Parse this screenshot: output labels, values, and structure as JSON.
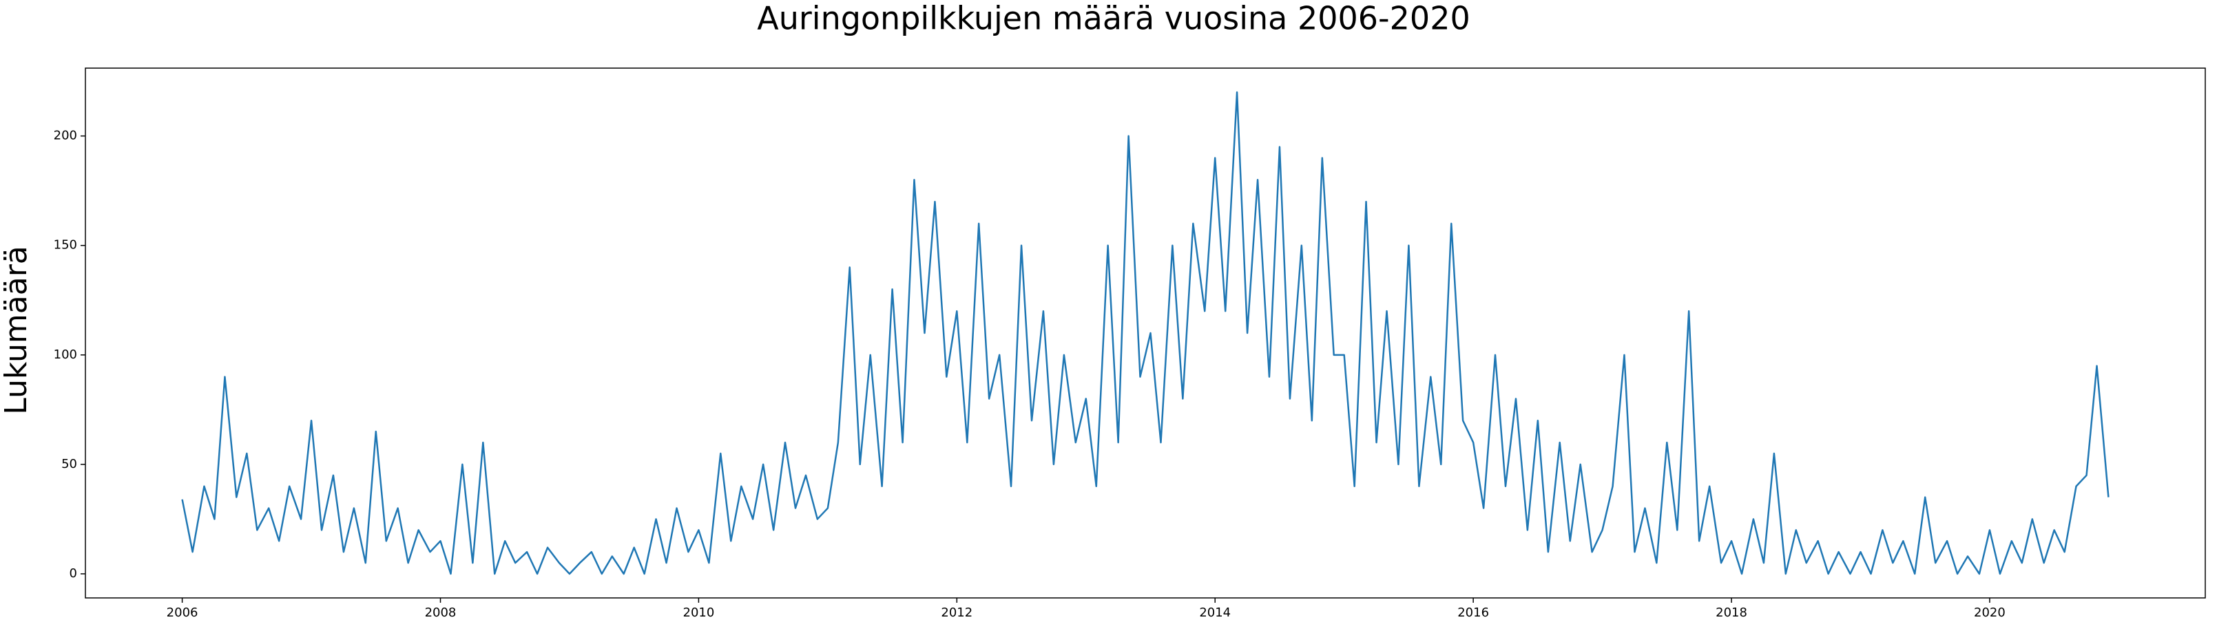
{
  "chart_data": {
    "type": "line",
    "title": "Auringonpilkkujen määrä vuosina 2006-2020",
    "y_label": "Lukumäärä",
    "x": [
      2006,
      2006.08,
      2006.17,
      2006.25,
      2006.33,
      2006.42,
      2006.5,
      2006.58,
      2006.67,
      2006.75,
      2006.83,
      2006.92,
      2007,
      2007.08,
      2007.17,
      2007.25,
      2007.33,
      2007.42,
      2007.5,
      2007.58,
      2007.67,
      2007.75,
      2007.83,
      2007.92,
      2008,
      2008.08,
      2008.17,
      2008.25,
      2008.33,
      2008.42,
      2008.5,
      2008.58,
      2008.67,
      2008.75,
      2008.83,
      2008.92,
      2009,
      2009.08,
      2009.17,
      2009.25,
      2009.33,
      2009.42,
      2009.5,
      2009.58,
      2009.67,
      2009.75,
      2009.83,
      2009.92,
      2010,
      2010.08,
      2010.17,
      2010.25,
      2010.33,
      2010.42,
      2010.5,
      2010.58,
      2010.67,
      2010.75,
      2010.83,
      2010.92,
      2011,
      2011.08,
      2011.17,
      2011.25,
      2011.33,
      2011.42,
      2011.5,
      2011.58,
      2011.67,
      2011.75,
      2011.83,
      2011.92,
      2012,
      2012.08,
      2012.17,
      2012.25,
      2012.33,
      2012.42,
      2012.5,
      2012.58,
      2012.67,
      2012.75,
      2012.83,
      2012.92,
      2013,
      2013.08,
      2013.17,
      2013.25,
      2013.33,
      2013.42,
      2013.5,
      2013.58,
      2013.67,
      2013.75,
      2013.83,
      2013.92,
      2014,
      2014.08,
      2014.17,
      2014.25,
      2014.33,
      2014.42,
      2014.5,
      2014.58,
      2014.67,
      2014.75,
      2014.83,
      2014.92,
      2015,
      2015.08,
      2015.17,
      2015.25,
      2015.33,
      2015.42,
      2015.5,
      2015.58,
      2015.67,
      2015.75,
      2015.83,
      2015.92,
      2016,
      2016.08,
      2016.17,
      2016.25,
      2016.33,
      2016.42,
      2016.5,
      2016.58,
      2016.67,
      2016.75,
      2016.83,
      2016.92,
      2017,
      2017.08,
      2017.17,
      2017.25,
      2017.33,
      2017.42,
      2017.5,
      2017.58,
      2017.67,
      2017.75,
      2017.83,
      2017.92,
      2018,
      2018.08,
      2018.17,
      2018.25,
      2018.33,
      2018.42,
      2018.5,
      2018.58,
      2018.67,
      2018.75,
      2018.83,
      2018.92,
      2019,
      2019.08,
      2019.17,
      2019.25,
      2019.33,
      2019.42,
      2019.5,
      2019.58,
      2019.67,
      2019.75,
      2019.83,
      2019.92,
      2020,
      2020.08,
      2020.17,
      2020.25,
      2020.33,
      2020.42,
      2020.5,
      2020.58,
      2020.67,
      2020.75,
      2020.83,
      2020.92
    ],
    "values": [
      34,
      10,
      40,
      25,
      90,
      35,
      55,
      20,
      30,
      15,
      40,
      25,
      70,
      20,
      45,
      10,
      30,
      5,
      65,
      15,
      30,
      5,
      20,
      10,
      15,
      0,
      50,
      5,
      60,
      0,
      15,
      5,
      10,
      0,
      12,
      5,
      0,
      5,
      10,
      0,
      8,
      0,
      12,
      0,
      25,
      5,
      30,
      10,
      20,
      5,
      55,
      15,
      40,
      25,
      50,
      20,
      60,
      30,
      45,
      25,
      30,
      60,
      140,
      50,
      100,
      40,
      130,
      60,
      180,
      110,
      170,
      90,
      120,
      60,
      160,
      80,
      100,
      40,
      150,
      70,
      120,
      50,
      100,
      60,
      80,
      40,
      150,
      60,
      200,
      90,
      110,
      60,
      150,
      80,
      160,
      120,
      190,
      120,
      220,
      110,
      180,
      90,
      195,
      80,
      150,
      70,
      190,
      100,
      100,
      40,
      170,
      60,
      120,
      50,
      150,
      40,
      90,
      50,
      160,
      70,
      60,
      30,
      100,
      40,
      80,
      20,
      70,
      10,
      60,
      15,
      50,
      10,
      20,
      40,
      100,
      10,
      30,
      5,
      60,
      20,
      120,
      15,
      40,
      5,
      15,
      0,
      25,
      5,
      55,
      0,
      20,
      5,
      15,
      0,
      10,
      0,
      10,
      0,
      20,
      5,
      15,
      0,
      35,
      5,
      15,
      0,
      8,
      0,
      20,
      0,
      15,
      5,
      25,
      5,
      20,
      10,
      40,
      45,
      95,
      35
    ],
    "color": "#1f77b4",
    "xlim": [
      2005.25,
      2021.67
    ],
    "xticks": [
      2006,
      2008,
      2010,
      2012,
      2014,
      2016,
      2018,
      2020
    ],
    "ylim": [
      -11,
      231
    ],
    "yticks": [
      0,
      50,
      100,
      150,
      200
    ],
    "grid": false
  }
}
